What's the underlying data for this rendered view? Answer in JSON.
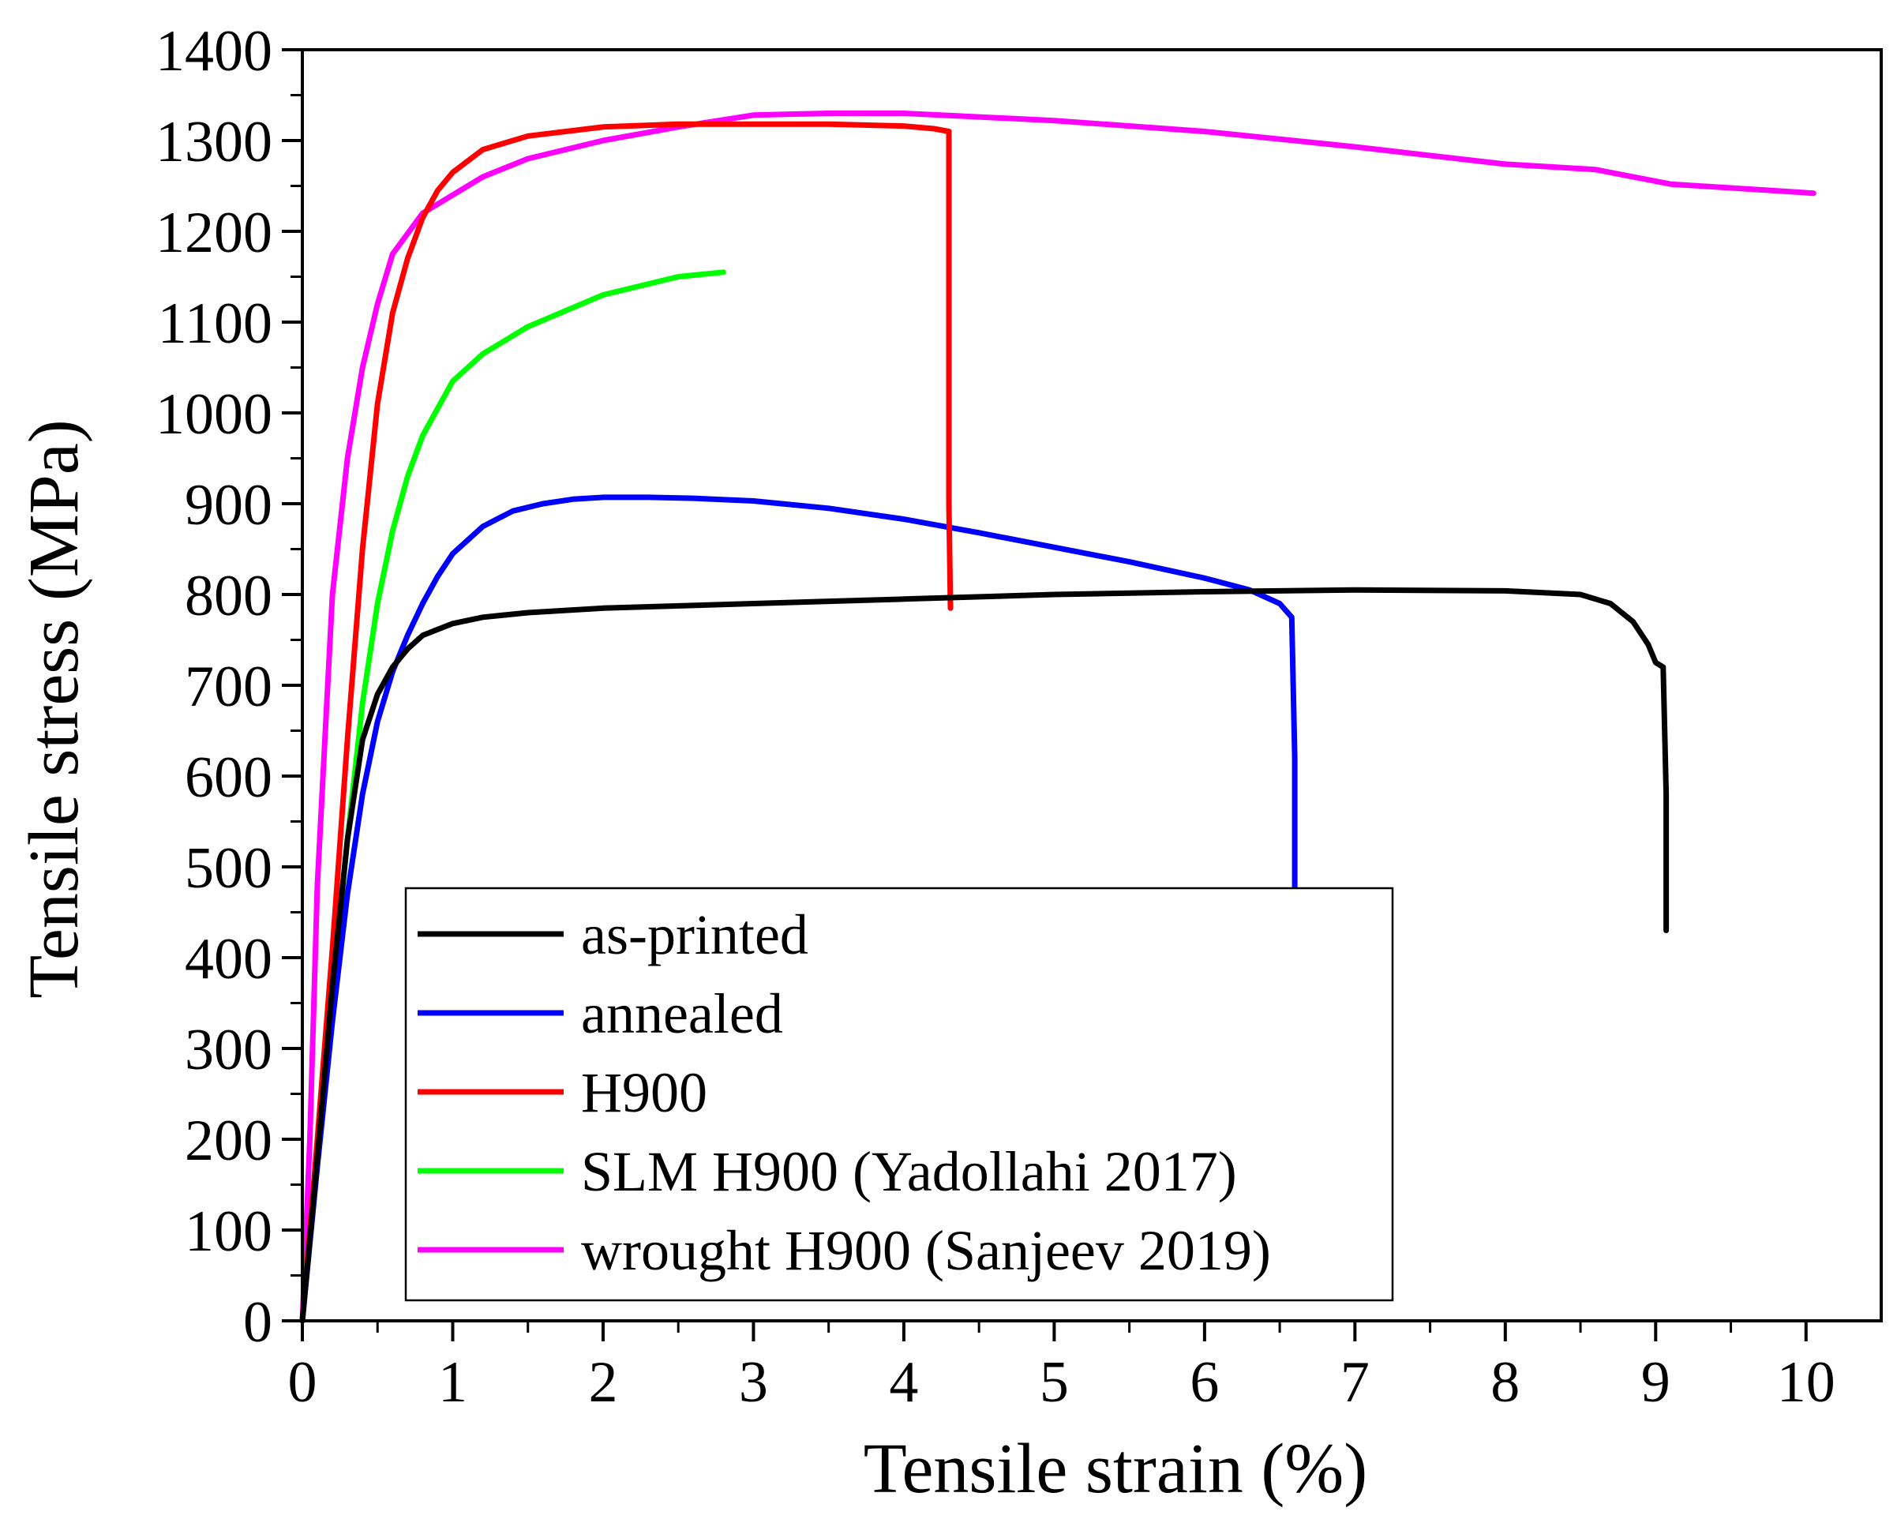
{
  "chart_data": {
    "type": "line",
    "title": "",
    "xlabel": "Tensile strain (%)",
    "ylabel": "Tensile stress (MPa)",
    "xlim": [
      0,
      10.5
    ],
    "ylim": [
      0,
      1400
    ],
    "x_ticks": [
      0,
      1,
      2,
      3,
      4,
      5,
      6,
      7,
      8,
      9,
      10
    ],
    "x_tick_labels": [
      "0",
      "1",
      "2",
      "3",
      "4",
      "5",
      "6",
      "7",
      "8",
      "9",
      "10"
    ],
    "y_ticks": [
      0,
      100,
      200,
      300,
      400,
      500,
      600,
      700,
      800,
      900,
      1000,
      1100,
      1200,
      1300,
      1400
    ],
    "y_tick_labels": [
      "0",
      "100",
      "200",
      "300",
      "400",
      "500",
      "600",
      "700",
      "800",
      "900",
      "1000",
      "1100",
      "1200",
      "1300",
      "1400"
    ],
    "grid": false,
    "legend_position": "bottom-center",
    "series": [
      {
        "name": "as-printed",
        "color": "#000000",
        "x": [
          0,
          0.1,
          0.2,
          0.3,
          0.4,
          0.5,
          0.6,
          0.7,
          0.8,
          1.0,
          1.2,
          1.5,
          2,
          3,
          4,
          5,
          6,
          7,
          8,
          8.5,
          8.7,
          8.85,
          8.95,
          9.0,
          9.05,
          9.07,
          9.07
        ],
        "y": [
          0,
          180,
          370,
          530,
          640,
          690,
          720,
          740,
          755,
          768,
          775,
          780,
          785,
          790,
          795,
          800,
          803,
          805,
          804,
          800,
          790,
          770,
          745,
          725,
          720,
          580,
          430
        ]
      },
      {
        "name": "annealed",
        "color": "#0000ff",
        "x": [
          0,
          0.1,
          0.2,
          0.3,
          0.4,
          0.5,
          0.6,
          0.7,
          0.8,
          0.9,
          1.0,
          1.2,
          1.4,
          1.6,
          1.8,
          2,
          2.3,
          2.6,
          3,
          3.5,
          4,
          4.5,
          5,
          5.5,
          6,
          6.3,
          6.5,
          6.58,
          6.6,
          6.6
        ],
        "y": [
          0,
          170,
          330,
          470,
          580,
          660,
          715,
          755,
          790,
          820,
          845,
          875,
          892,
          900,
          905,
          907,
          907,
          906,
          903,
          895,
          883,
          868,
          852,
          836,
          818,
          805,
          790,
          775,
          620,
          475
        ]
      },
      {
        "name": "H900",
        "color": "#ff0000",
        "x": [
          0,
          0.1,
          0.2,
          0.3,
          0.4,
          0.5,
          0.6,
          0.7,
          0.8,
          0.9,
          1.0,
          1.2,
          1.5,
          2,
          2.5,
          3,
          3.5,
          4,
          4.2,
          4.3,
          4.3,
          4.3,
          4.31
        ],
        "y": [
          0,
          200,
          410,
          640,
          850,
          1010,
          1110,
          1170,
          1215,
          1245,
          1265,
          1290,
          1305,
          1315,
          1318,
          1318,
          1318,
          1316,
          1313,
          1310,
          1180,
          900,
          785
        ]
      },
      {
        "name": "SLM H900 (Yadollahi 2017)",
        "color": "#00ff00",
        "x": [
          0,
          0.1,
          0.2,
          0.3,
          0.4,
          0.5,
          0.6,
          0.7,
          0.8,
          0.9,
          1.0,
          1.2,
          1.5,
          2,
          2.5,
          2.8
        ],
        "y": [
          0,
          180,
          360,
          530,
          680,
          790,
          870,
          930,
          975,
          1005,
          1035,
          1065,
          1095,
          1130,
          1150,
          1155
        ]
      },
      {
        "name": "wrought H900 (Sanjeev 2019)",
        "color": "#ff00ff",
        "x": [
          0,
          0.05,
          0.1,
          0.2,
          0.3,
          0.4,
          0.5,
          0.6,
          0.8,
          1.0,
          1.2,
          1.5,
          2,
          2.5,
          3,
          3.5,
          4,
          5,
          6,
          7,
          8,
          8.6,
          9.1,
          10.05
        ],
        "y": [
          0,
          200,
          480,
          800,
          950,
          1050,
          1120,
          1175,
          1220,
          1240,
          1260,
          1280,
          1300,
          1315,
          1328,
          1330,
          1330,
          1322,
          1310,
          1293,
          1274,
          1268,
          1252,
          1242
        ]
      }
    ]
  }
}
